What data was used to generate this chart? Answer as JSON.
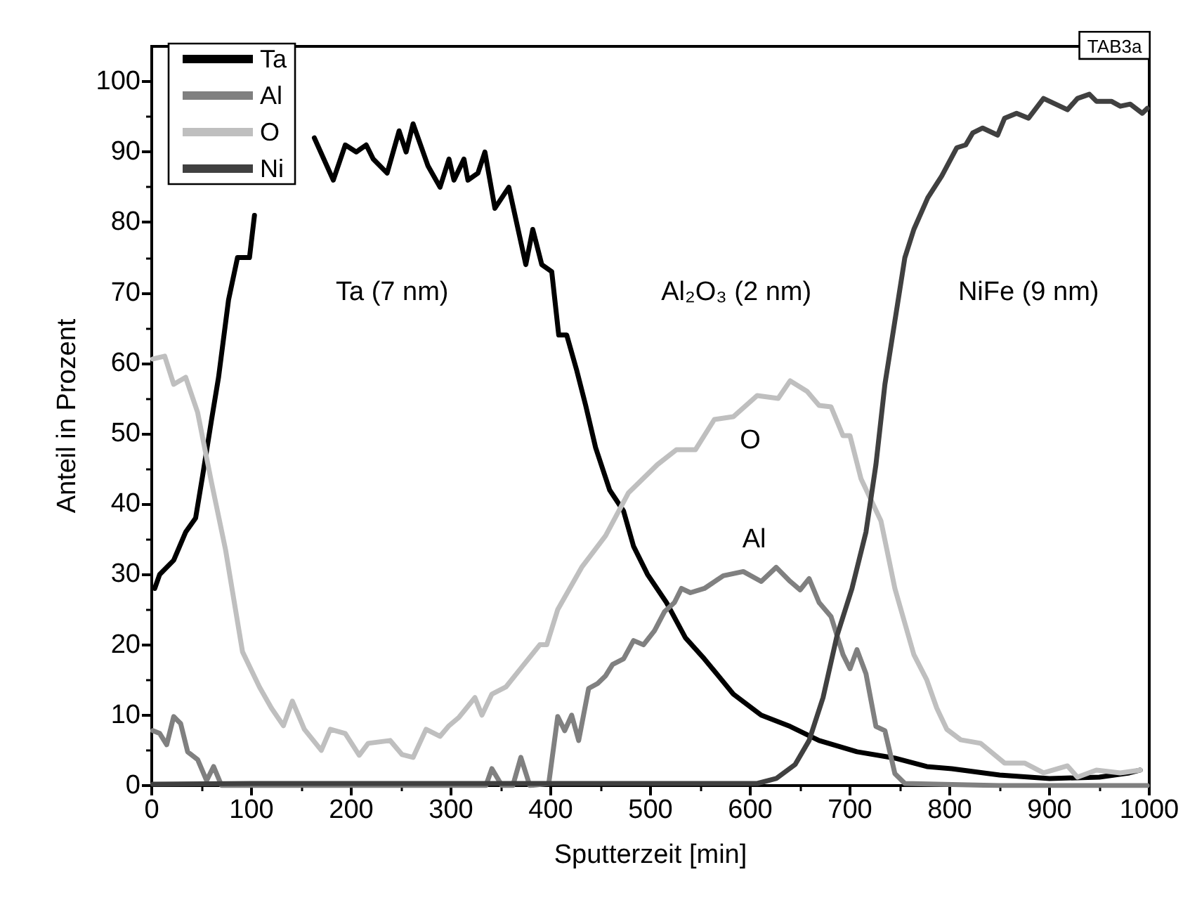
{
  "chart_data": {
    "type": "line",
    "xlabel": "Sputterzeit [min]",
    "ylabel": "Anteil in Prozent",
    "xlim": [
      0,
      1000
    ],
    "xticks": [
      0,
      100,
      200,
      300,
      400,
      500,
      600,
      700,
      800,
      900,
      1000
    ],
    "ylim": [
      0,
      105
    ],
    "yticks": [
      0,
      10,
      20,
      30,
      40,
      50,
      60,
      70,
      80,
      90,
      100
    ],
    "grid": false,
    "legend": "top left",
    "marker": "none",
    "line_style": "solid",
    "series": [
      {
        "name": "Ta",
        "color": "#000000",
        "x": [
          3,
          8,
          22,
          34,
          44,
          51,
          60,
          67,
          77,
          86,
          98,
          103,
          120,
          140,
          163,
          182,
          194,
          205,
          215,
          222,
          236,
          248,
          255,
          262,
          277,
          289,
          298,
          303,
          313,
          317,
          327,
          334,
          344,
          358,
          375,
          382,
          391,
          401,
          408,
          416,
          426,
          435,
          445,
          459,
          473,
          483,
          497,
          516,
          535,
          554,
          583,
          611,
          640,
          669,
          707,
          745,
          777,
          802,
          850,
          900,
          950,
          980,
          991
        ],
        "values": [
          28,
          30,
          32,
          36,
          38,
          44,
          52,
          58,
          69,
          75,
          75,
          81,
          null,
          null,
          92,
          86,
          91,
          90,
          91,
          89,
          87,
          93,
          90,
          94,
          88,
          85,
          89,
          86,
          89,
          86,
          87,
          90,
          82,
          85,
          74,
          79,
          74,
          73,
          64,
          64,
          59,
          54,
          48,
          42,
          39,
          34,
          30,
          26,
          21,
          18,
          13,
          10,
          8.4,
          6.4,
          4.8,
          3.9,
          2.7,
          2.4,
          1.5,
          1,
          1.2,
          1.8,
          2.2
        ]
      },
      {
        "name": "Al",
        "color": "#808080",
        "x": [
          1,
          8,
          15,
          22,
          29,
          36,
          46,
          55,
          62,
          70,
          200,
          335,
          341,
          351,
          362,
          370,
          379,
          398,
          407,
          414,
          421,
          428,
          438,
          447,
          455,
          462,
          473,
          483,
          493,
          504,
          514,
          524,
          531,
          540,
          554,
          573,
          593,
          611,
          626,
          640,
          650,
          659,
          669,
          681,
          693,
          700,
          707,
          716,
          726,
          735,
          745,
          755,
          850,
          998
        ],
        "values": [
          7.8,
          7.4,
          5.8,
          9.8,
          8.8,
          4.8,
          3.7,
          0.7,
          2.7,
          0,
          0,
          0,
          2.4,
          0,
          0,
          4,
          0,
          0.3,
          9.8,
          7.8,
          10,
          6.4,
          13.8,
          14.5,
          15.6,
          17.2,
          18,
          20.6,
          20,
          22,
          24.7,
          26,
          28,
          27.4,
          28,
          29.8,
          30.4,
          29,
          31,
          29,
          27.8,
          29.4,
          26,
          24,
          18.6,
          16.6,
          19.3,
          15.9,
          8.4,
          7.8,
          1.7,
          0.3,
          0,
          0
        ]
      },
      {
        "name": "O",
        "color": "#bfbfbf",
        "x": [
          1,
          13,
          22,
          34,
          46,
          60,
          74,
          91,
          108,
          120,
          132,
          141,
          153,
          170,
          179,
          194,
          208,
          217,
          239,
          251,
          262,
          275,
          289,
          298,
          308,
          324,
          331,
          341,
          355,
          372,
          389,
          396,
          407,
          431,
          455,
          478,
          507,
          526,
          545,
          564,
          583,
          607,
          628,
          640,
          657,
          669,
          681,
          693,
          700,
          711,
          731,
          745,
          764,
          777,
          787,
          797,
          811,
          831,
          855,
          875,
          894,
          918,
          928,
          947,
          971,
          991
        ],
        "values": [
          60.6,
          61,
          57,
          58,
          53,
          43,
          33.5,
          19,
          14,
          11,
          8.5,
          12,
          8,
          5,
          8,
          7.4,
          4.3,
          6,
          6.4,
          4.4,
          4,
          8,
          7,
          8.5,
          9.7,
          12.5,
          10,
          13,
          14,
          17,
          20,
          20,
          25,
          31,
          35.5,
          41.6,
          45.6,
          47.7,
          47.7,
          52,
          52.4,
          55.4,
          55,
          57.5,
          56,
          54,
          53.8,
          49.7,
          49.7,
          43.6,
          37.6,
          28,
          18.6,
          15,
          11,
          8,
          6.5,
          6,
          3.2,
          3.2,
          1.8,
          2.8,
          1.2,
          2.2,
          1.8,
          2.2
        ]
      },
      {
        "name": "Ni",
        "color": "#404040",
        "x": [
          1,
          100,
          200,
          300,
          383,
          500,
          607,
          626,
          645,
          659,
          673,
          687,
          702,
          716,
          726,
          735,
          745,
          755,
          764,
          778,
          792,
          807,
          816,
          823,
          833,
          848,
          855,
          867,
          879,
          894,
          906,
          918,
          928,
          940,
          947,
          962,
          971,
          981,
          993,
          998
        ],
        "values": [
          0.2,
          0.3,
          0.3,
          0.3,
          0.3,
          0.3,
          0.3,
          1,
          3,
          6.4,
          12.5,
          21.3,
          28,
          36,
          45.6,
          57,
          66,
          75,
          79,
          83.5,
          86.6,
          90.6,
          91,
          92.7,
          93.4,
          92.4,
          94.8,
          95.5,
          94.8,
          97.6,
          96.8,
          96,
          97.6,
          98.2,
          97.2,
          97.2,
          96.5,
          96.8,
          95.5,
          96.2
        ]
      }
    ],
    "annotations": [
      "Ta (7 nm)",
      "Al₂O₃ (2 nm)",
      "NiFe (9 nm)",
      "O",
      "Al",
      "TAB3a"
    ]
  }
}
